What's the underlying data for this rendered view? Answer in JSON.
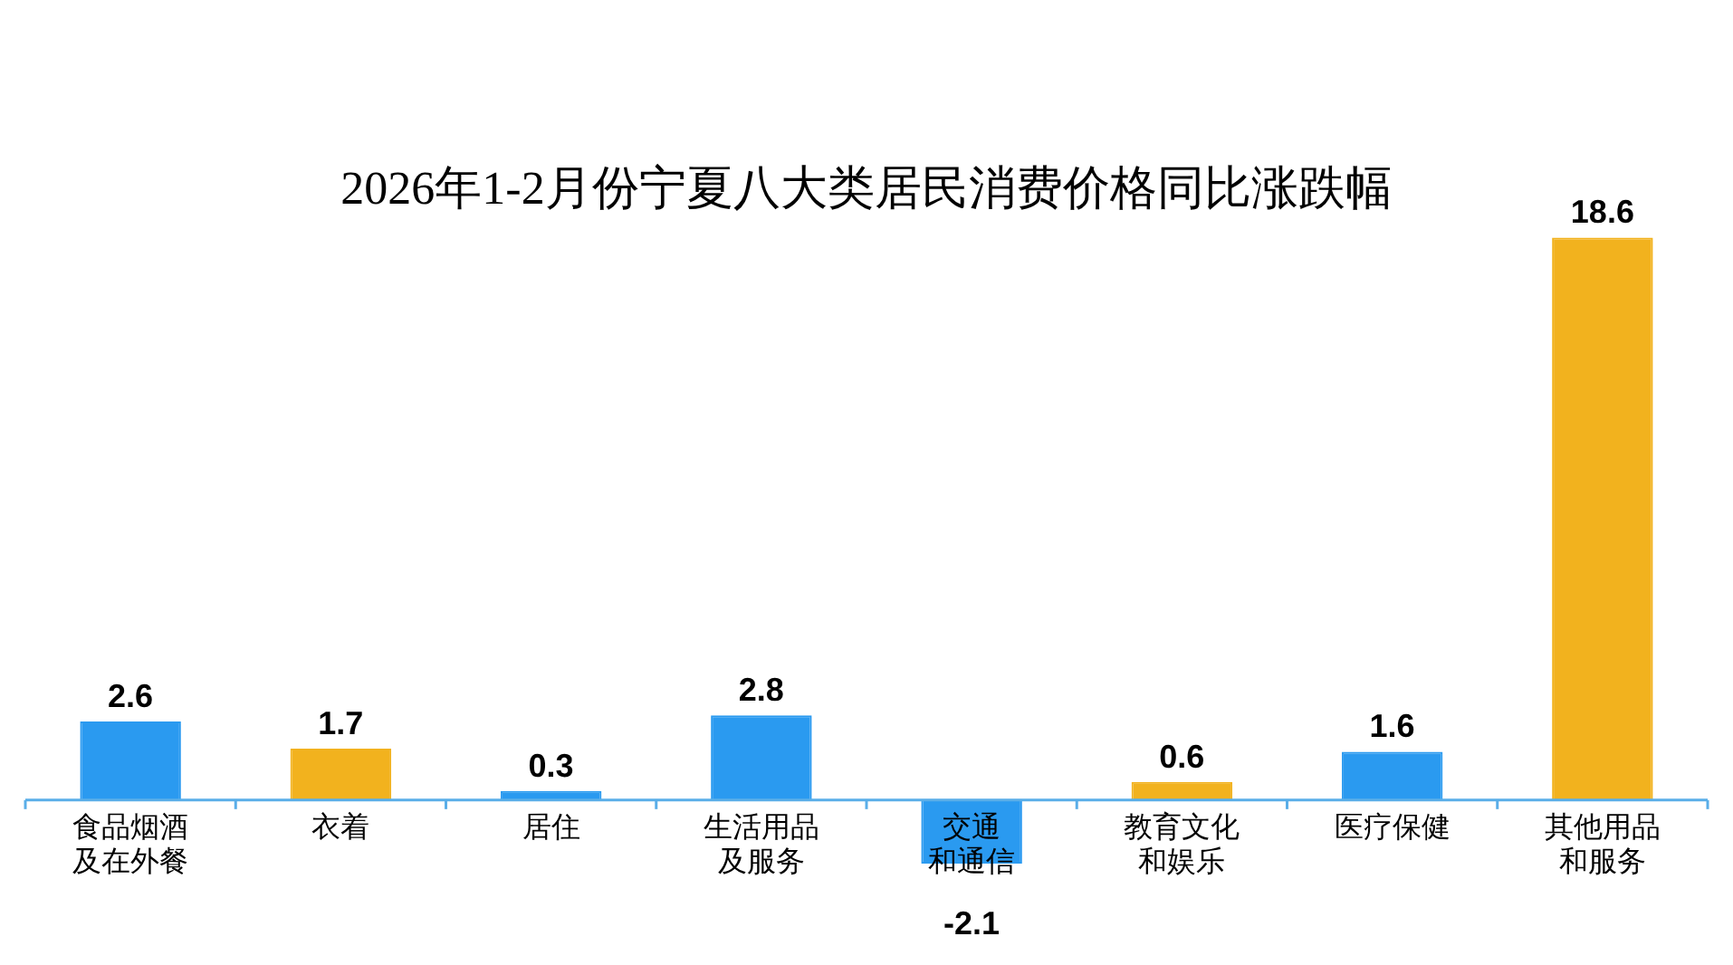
{
  "chart_data": {
    "type": "bar",
    "title": "2026年1-2月份宁夏八大类居民消费价格同比涨跌幅",
    "categories": [
      "食品烟酒及在外餐",
      "衣着",
      "居住",
      "生活用品及服务",
      "交通和通信",
      "教育文化和娱乐",
      "医疗保健",
      "其他用品和服务"
    ],
    "values": [
      2.6,
      1.7,
      0.3,
      2.8,
      -2.1,
      0.6,
      1.6,
      18.6
    ],
    "colors": [
      "#2a9af0",
      "#f2b21e",
      "#2a9af0",
      "#2a9af0",
      "#2a9af0",
      "#f2b21e",
      "#2a9af0",
      "#f2b21e"
    ],
    "data_labels": true,
    "grid": false,
    "legend": false
  }
}
